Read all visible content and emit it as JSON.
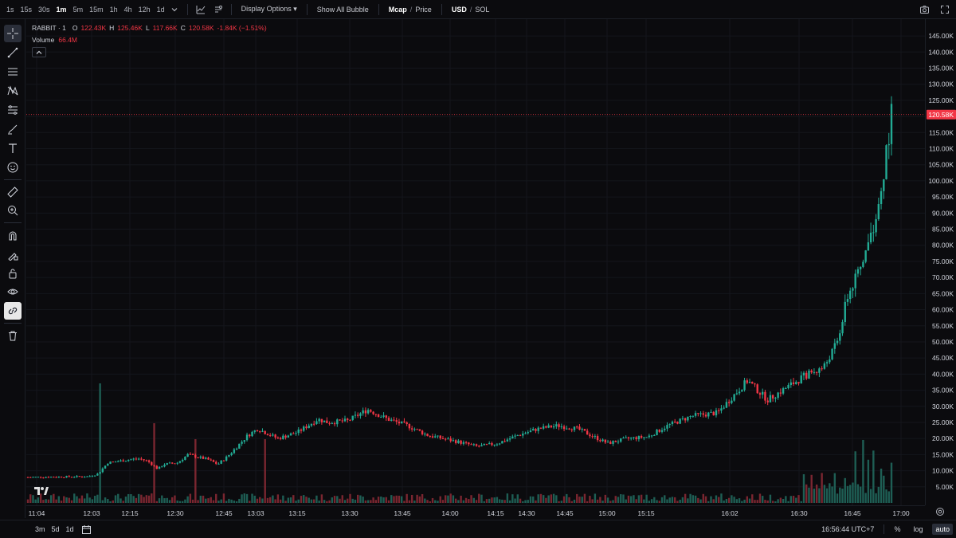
{
  "topbar": {
    "timeframes": [
      "1s",
      "15s",
      "30s",
      "1m",
      "5m",
      "15m",
      "1h",
      "4h",
      "12h",
      "1d"
    ],
    "active_timeframe": "1m",
    "display_options": "Display Options",
    "show_all_bubble": "Show All Bubble",
    "mcap": "Mcap",
    "price": "Price",
    "usd": "USD",
    "sol": "SOL",
    "slash": "/"
  },
  "legend": {
    "symbol": "RABBIT · 1",
    "o_label": "O",
    "o_value": "122.43K",
    "h_label": "H",
    "h_value": "125.46K",
    "l_label": "L",
    "l_value": "117.66K",
    "c_label": "C",
    "c_value": "120.58K",
    "change": "-1.84K (−1.51%)",
    "volume_label": "Volume",
    "volume_value": "66.4M"
  },
  "price_axis": {
    "ticks": [
      "145.00K",
      "140.00K",
      "135.00K",
      "130.00K",
      "125.00K",
      "120.00K",
      "115.00K",
      "110.00K",
      "105.00K",
      "100.00K",
      "95.00K",
      "90.00K",
      "85.00K",
      "80.00K",
      "75.00K",
      "70.00K",
      "65.00K",
      "60.00K",
      "55.00K",
      "50.00K",
      "45.00K",
      "40.00K",
      "35.00K",
      "30.00K",
      "25.00K",
      "20.00K",
      "15.00K",
      "10.00K",
      "5.00K"
    ],
    "current_label": "120.58K"
  },
  "time_axis": {
    "labels": [
      "11:04",
      "12:03",
      "12:15",
      "12:30",
      "12:45",
      "13:03",
      "13:15",
      "13:30",
      "13:45",
      "14:00",
      "14:15",
      "14:30",
      "14:45",
      "15:00",
      "15:15",
      "16:02",
      "16:30",
      "16:45",
      "17:00"
    ]
  },
  "bottombar": {
    "ranges": [
      "3m",
      "5d",
      "1d"
    ],
    "clock": "16:56:44 UTC+7",
    "percent": "%",
    "log": "log",
    "auto": "auto"
  },
  "colors": {
    "up": "#22ab94",
    "down": "#f23645",
    "up_volume": "#1e5e54",
    "down_volume": "#7a2630",
    "background": "#0b0b0e"
  },
  "chart_data": {
    "type": "candlestick",
    "unit": "market cap (USD)",
    "ylim": [
      0,
      147000
    ],
    "current_close": 120580,
    "candles": [
      {
        "time": "11:04",
        "open": 8000,
        "high": 8500,
        "low": 7600,
        "close": 8200
      },
      {
        "time": "12:03",
        "open": 9000,
        "high": 14000,
        "low": 8800,
        "close": 12500
      },
      {
        "time": "12:15",
        "open": 13000,
        "high": 14200,
        "low": 12800,
        "close": 13500
      },
      {
        "time": "12:30",
        "open": 12000,
        "high": 13000,
        "low": 8600,
        "close": 10500
      },
      {
        "time": "12:45",
        "open": 15000,
        "high": 15500,
        "low": 13000,
        "close": 13500
      },
      {
        "time": "13:03",
        "open": 14500,
        "high": 20000,
        "low": 14000,
        "close": 18500
      },
      {
        "time": "13:15",
        "open": 22000,
        "high": 23000,
        "low": 19500,
        "close": 20500
      },
      {
        "time": "13:30",
        "open": 24000,
        "high": 26500,
        "low": 23000,
        "close": 25500
      },
      {
        "time": "13:45",
        "open": 27500,
        "high": 29000,
        "low": 26000,
        "close": 27000
      },
      {
        "time": "14:00",
        "open": 21000,
        "high": 22000,
        "low": 19500,
        "close": 20000
      },
      {
        "time": "14:15",
        "open": 17500,
        "high": 18500,
        "low": 16500,
        "close": 17000
      },
      {
        "time": "14:30",
        "open": 19000,
        "high": 20000,
        "low": 18500,
        "close": 19500
      },
      {
        "time": "14:45",
        "open": 23000,
        "high": 24000,
        "low": 22500,
        "close": 23500
      },
      {
        "time": "15:00",
        "open": 23500,
        "high": 24500,
        "low": 23000,
        "close": 23000
      },
      {
        "time": "15:15",
        "open": 20000,
        "high": 20500,
        "low": 18000,
        "close": 18500
      },
      {
        "time": "16:02",
        "open": 21000,
        "high": 22000,
        "low": 20500,
        "close": 21500
      },
      {
        "time": "16:30",
        "open": 37000,
        "high": 39000,
        "low": 25000,
        "close": 30000
      },
      {
        "time": "16:45",
        "open": 40000,
        "high": 43000,
        "low": 36000,
        "close": 38000
      },
      {
        "time": "16:50",
        "open": 45000,
        "high": 65000,
        "low": 44000,
        "close": 64000
      },
      {
        "time": "16:53",
        "open": 72000,
        "high": 82000,
        "low": 70000,
        "close": 80000
      },
      {
        "time": "16:55",
        "open": 94000,
        "high": 98000,
        "low": 84000,
        "close": 90000
      },
      {
        "time": "16:56",
        "open": 122430,
        "high": 125460,
        "low": 117660,
        "close": 120580
      }
    ],
    "volume_last": "66.4M"
  }
}
